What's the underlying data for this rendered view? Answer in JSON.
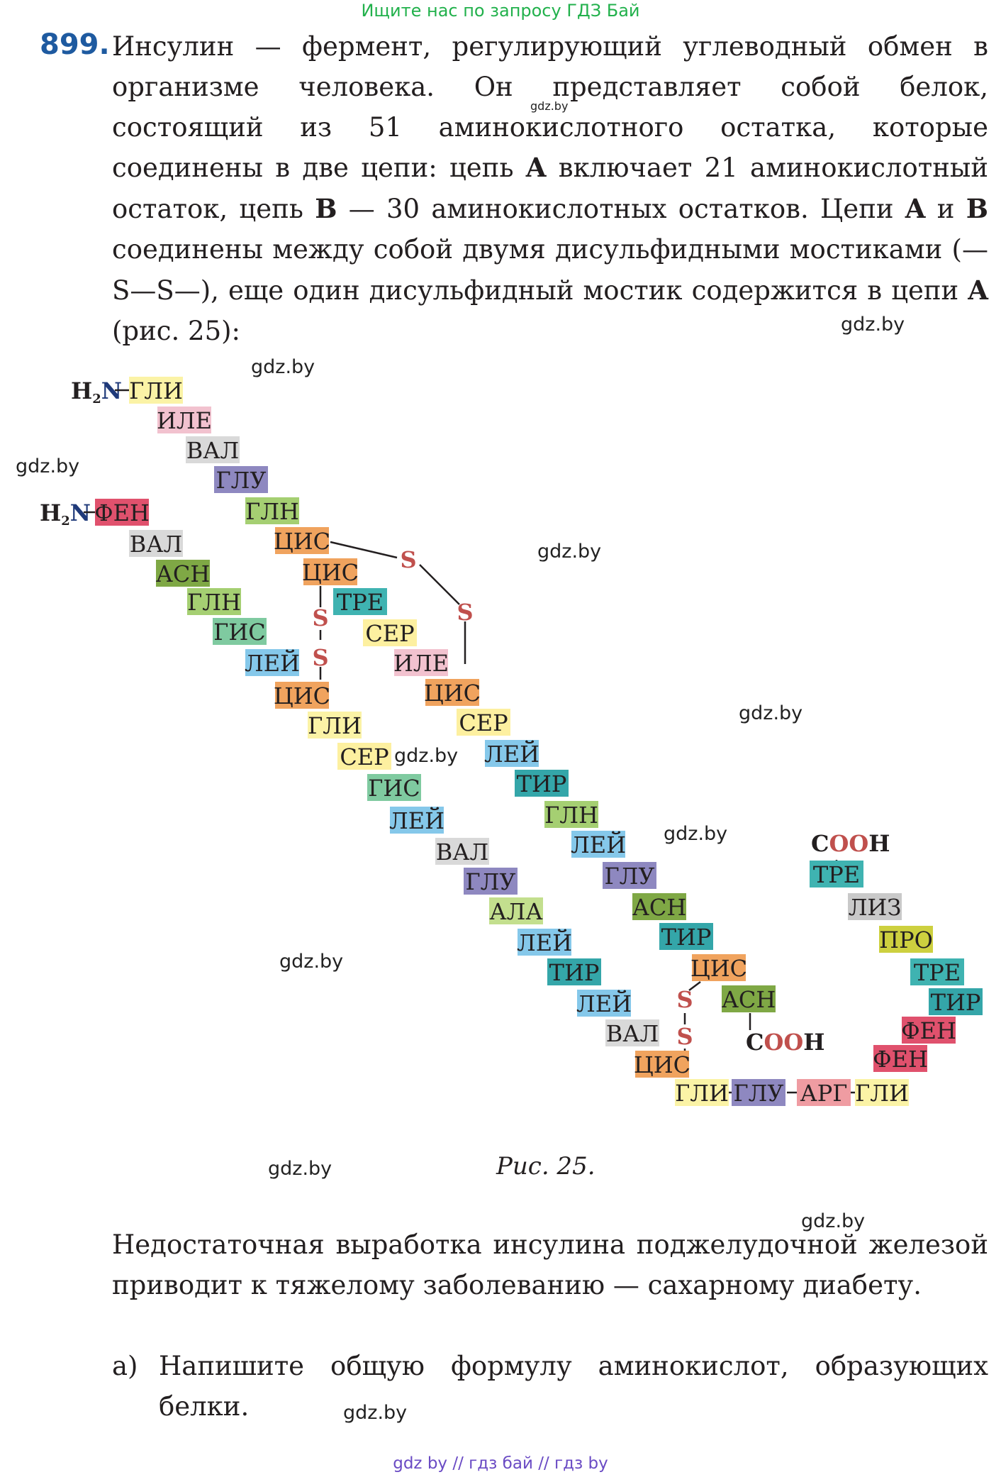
{
  "header": {
    "banner": "Ищите нас по запросу ГДЗ Бай"
  },
  "footer": {
    "banner": "gdz by  //  гдз бай  //  гдз by"
  },
  "task": {
    "number": "899.",
    "intro_html": "Инсулин — фермент, регулирующий углеводный обмен в организме человека. Он представляет собой белок, состоящий из 51 аминокислотного остатка, которые соединены в две цепи: цепь <b>A</b> включает 21 аминокислотный остаток, цепь <b>B</b> — 30 аминокислотных остатков. Цепи <b>A</b> и <b>B</b> соединены между собой двумя дисульфидными мостиками (—S—S—), еще один дисульфидный мостик содержится в цепи <b>A</b> (рис. 25):",
    "caption": "Рис. 25.",
    "after": "Недостаточная выработка инсулина поджелудочной железой приводит к тяжелому заболеванию — сахарному диабету.",
    "item_a_label": "а)",
    "item_a_text": "Напишите общую формулу аминокислот, образующих белки."
  },
  "watermark": {
    "text": "gdz.by"
  },
  "figure": {
    "colors": {
      "ГЛИ": "#fbf3a6",
      "ИЛЕ": "#f2c2cf",
      "ВАЛ": "#d9d9d9",
      "ГЛУ": "#8e88c0",
      "ГЛН": "#a5cf72",
      "ЦИС": "#f0a35e",
      "ТРЕ": "#3fb3b1",
      "СЕР": "#fdf0a0",
      "ФЕН": "#e0516d",
      "АСН": "#7fa845",
      "ГИС": "#7fcaa0",
      "ЛЕЙ": "#85c8ea",
      "ТИР": "#34a6a9",
      "АЛА": "#c3df8e",
      "ЛИЗ": "#c9c9c9",
      "ПРО": "#cdd03f",
      "АРГ": "#ef9ca2"
    },
    "s_color": "#c0504d",
    "n_color": "#1f3a7a",
    "h2n_h": "H",
    "h2n_sub": "2",
    "h2n_n": "N",
    "cooh_c": "C",
    "cooh_o": "OO",
    "cooh_h": "H",
    "chain_a": [
      "ГЛИ",
      "ИЛЕ",
      "ВАЛ",
      "ГЛУ",
      "ГЛН",
      "ЦИС",
      "ЦИС",
      "ТРЕ",
      "СЕР",
      "ИЛЕ",
      "ЦИС",
      "СЕР",
      "ЛЕЙ",
      "ТИР",
      "ГЛН",
      "ЛЕЙ",
      "ГЛУ",
      "АСН",
      "ТИР",
      "ЦИС",
      "АСН"
    ],
    "chain_b": [
      "ФЕН",
      "ВАЛ",
      "АСН",
      "ГЛН",
      "ГИС",
      "ЛЕЙ",
      "ЦИС",
      "ГЛИ",
      "СЕР",
      "ГИС",
      "ЛЕЙ",
      "ВАЛ",
      "ГЛУ",
      "АЛА",
      "ЛЕЙ",
      "ТИР",
      "ЛЕЙ",
      "ВАЛ",
      "ЦИС",
      "ГЛИ",
      "ГЛУ",
      "АРГ",
      "ГЛИ",
      "ФЕН",
      "ФЕН",
      "ТИР",
      "ТРЕ",
      "ПРО",
      "ЛИЗ",
      "ТРЕ"
    ],
    "s_letter": "S"
  }
}
